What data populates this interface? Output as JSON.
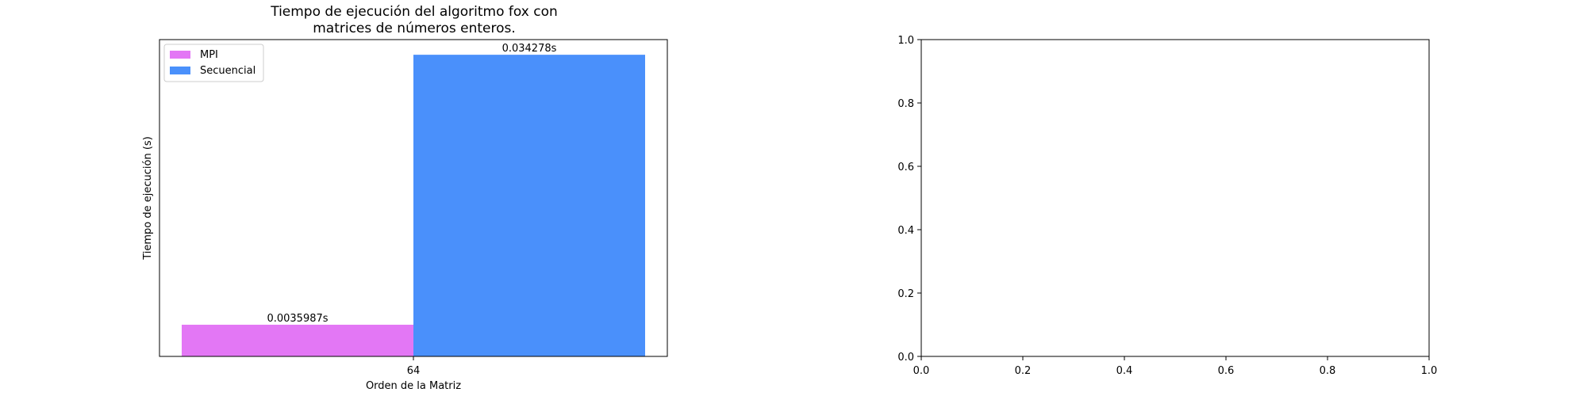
{
  "chart_data": [
    {
      "type": "bar",
      "title_lines": [
        "Tiempo de ejecución del algoritmo fox con",
        "matrices de números enteros."
      ],
      "xlabel": "Orden de la Matriz",
      "ylabel": "Tiempo de ejecución (s)",
      "categories": [
        "64"
      ],
      "series": [
        {
          "name": "MPI",
          "color": "#e377f5",
          "values": [
            0.0035987
          ],
          "labels": [
            "0.0035987s"
          ]
        },
        {
          "name": "Secuencial",
          "color": "#4a90fb",
          "values": [
            0.034278
          ],
          "labels": [
            "0.034278s"
          ]
        }
      ],
      "ylim": [
        0,
        0.036
      ],
      "y_ticks_visible": false,
      "legend_position": "upper-left",
      "grid": false
    },
    {
      "type": "empty",
      "xlim": [
        0.0,
        1.0
      ],
      "ylim": [
        0.0,
        1.0
      ],
      "x_ticks": [
        "0.0",
        "0.2",
        "0.4",
        "0.6",
        "0.8",
        "1.0"
      ],
      "y_ticks": [
        "0.0",
        "0.2",
        "0.4",
        "0.6",
        "0.8",
        "1.0"
      ],
      "grid": false
    }
  ]
}
